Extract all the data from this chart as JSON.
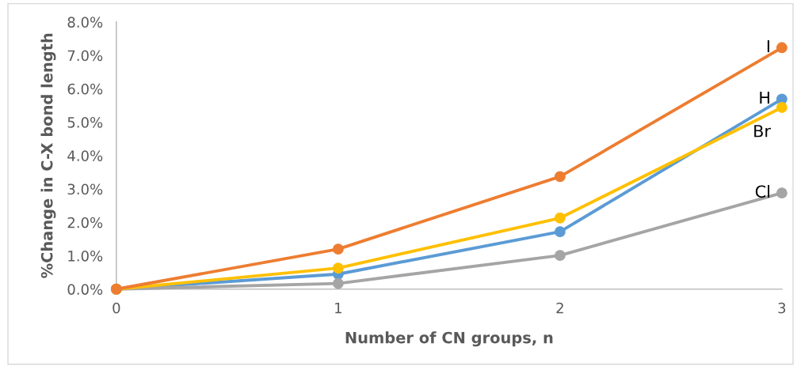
{
  "chart_data": {
    "type": "line",
    "xlabel": "Number of CN groups, n",
    "ylabel": "%Change in C-X bond length",
    "x": [
      0,
      1,
      2,
      3
    ],
    "series": [
      {
        "name": "H",
        "color": "#5b9bd5",
        "values": [
          0,
          0.45,
          1.72,
          5.69
        ]
      },
      {
        "name": "Cl",
        "color": "#a5a5a5",
        "values": [
          0,
          0.17,
          1.01,
          2.88
        ]
      },
      {
        "name": "Br",
        "color": "#ffc000",
        "values": [
          0,
          0.63,
          2.13,
          5.44
        ]
      },
      {
        "name": "I",
        "color": "#ed7d31",
        "values": [
          0,
          1.2,
          3.37,
          7.23
        ]
      }
    ],
    "xlim": [
      0,
      3
    ],
    "xticks": [
      0,
      1,
      2,
      3
    ],
    "ylim": [
      0,
      8
    ],
    "yticks": [
      {
        "value": 0,
        "label": "0.0%"
      },
      {
        "value": 1,
        "label": "1.0%"
      },
      {
        "value": 2,
        "label": "2.0%"
      },
      {
        "value": 3,
        "label": "3.0%"
      },
      {
        "value": 4,
        "label": "4.0%"
      },
      {
        "value": 5,
        "label": "5.0%"
      },
      {
        "value": 6,
        "label": "6.0%"
      },
      {
        "value": 7,
        "label": "7.0%"
      },
      {
        "value": 8,
        "label": "8.0%"
      }
    ],
    "grid": false,
    "legend": false,
    "marker": "circle",
    "line_style": "solid"
  }
}
